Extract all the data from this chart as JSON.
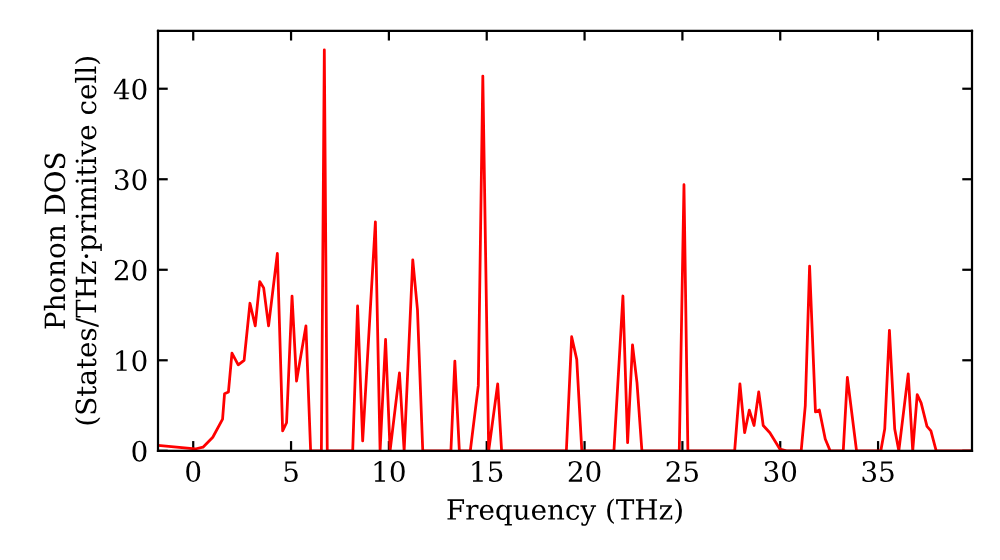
{
  "chart_data": {
    "type": "line",
    "xlabel": "Frequency (THz)",
    "ylabel": "Phonon DOS\n(States/THz·primitive cell)",
    "xlim": [
      -1.8,
      39.8
    ],
    "ylim": [
      0,
      46.4
    ],
    "xticks": [
      0,
      5,
      10,
      15,
      20,
      25,
      30,
      35
    ],
    "yticks": [
      0,
      10,
      20,
      30,
      40
    ],
    "grid": false,
    "legend": false,
    "marker": "none",
    "line_style": "solid",
    "series": [
      {
        "color": "#ff0000",
        "x": [
          -1.8,
          0.1,
          0.5,
          1.0,
          1.5,
          1.6,
          1.8,
          1.98,
          2.3,
          2.6,
          2.9,
          3.17,
          3.4,
          3.6,
          3.85,
          4.3,
          4.57,
          4.77,
          5.05,
          5.28,
          5.76,
          6.0,
          6.55,
          6.7,
          6.85,
          8.15,
          8.4,
          8.66,
          9.31,
          9.55,
          9.83,
          10.06,
          10.54,
          10.78,
          11.22,
          11.46,
          11.73,
          13.17,
          13.37,
          13.6,
          14.16,
          14.57,
          14.8,
          15.1,
          15.56,
          15.76,
          19.07,
          19.34,
          19.6,
          19.86,
          21.5,
          21.96,
          22.2,
          22.45,
          22.68,
          22.93,
          24.84,
          25.08,
          25.28,
          27.67,
          27.94,
          28.18,
          28.42,
          28.66,
          28.9,
          29.13,
          29.47,
          29.98,
          30.32,
          31.07,
          31.28,
          31.5,
          31.8,
          32.0,
          32.3,
          32.55,
          33.22,
          33.43,
          33.9,
          35.14,
          35.34,
          35.58,
          35.85,
          36.06,
          36.54,
          36.77,
          37.0,
          37.2,
          37.5,
          37.7,
          37.97,
          39.8
        ],
        "values": [
          0.6,
          0.2,
          0.4,
          1.5,
          3.5,
          6.3,
          6.5,
          10.8,
          9.5,
          10.0,
          16.3,
          13.8,
          18.7,
          18.0,
          13.8,
          21.8,
          2.2,
          3.1,
          17.1,
          7.7,
          13.8,
          0,
          0,
          44.3,
          0,
          0,
          16.0,
          1.1,
          25.3,
          0,
          12.3,
          0,
          8.6,
          0,
          21.1,
          15.6,
          0,
          0,
          9.9,
          0,
          0,
          7.2,
          41.4,
          0,
          7.4,
          0,
          0,
          12.6,
          10.1,
          0,
          0,
          17.1,
          0.9,
          11.7,
          7.5,
          0,
          0,
          29.4,
          0,
          0,
          7.4,
          2.0,
          4.5,
          2.8,
          6.5,
          2.8,
          2.0,
          0.2,
          0,
          0,
          5.0,
          20.4,
          4.3,
          4.5,
          1.3,
          0,
          0,
          8.1,
          0,
          0,
          2.4,
          13.3,
          2.4,
          0,
          8.5,
          0,
          6.2,
          5.3,
          2.7,
          2.2,
          0,
          0
        ]
      }
    ]
  }
}
